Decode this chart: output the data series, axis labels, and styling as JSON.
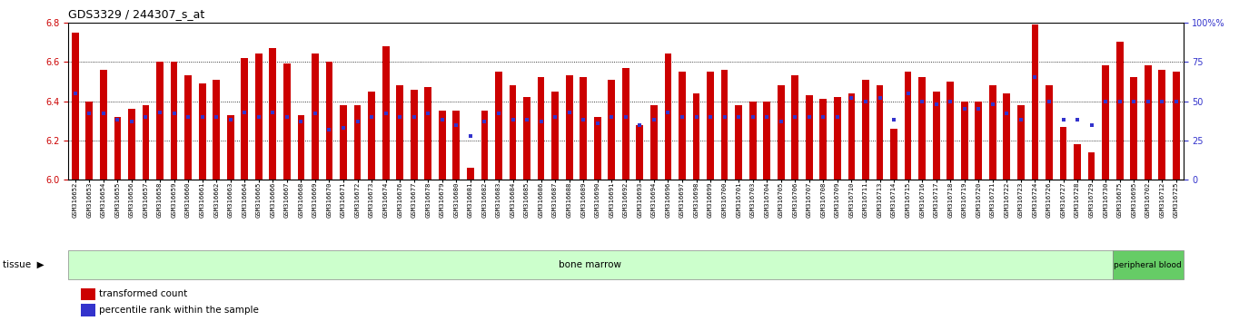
{
  "title": "GDS3329 / 244307_s_at",
  "ylim_left": [
    6.0,
    6.8
  ],
  "ylim_right": [
    0,
    100
  ],
  "yticks_left": [
    6.0,
    6.2,
    6.4,
    6.6,
    6.8
  ],
  "yticks_right": [
    0,
    25,
    50,
    75,
    100
  ],
  "bar_color": "#cc0000",
  "dot_color": "#3333cc",
  "tissue_bone_marrow_color": "#ccffcc",
  "tissue_peripheral_blood_color": "#66cc66",
  "samples": [
    "GSM316652",
    "GSM316653",
    "GSM316654",
    "GSM316655",
    "GSM316656",
    "GSM316657",
    "GSM316658",
    "GSM316659",
    "GSM316660",
    "GSM316661",
    "GSM316662",
    "GSM316663",
    "GSM316664",
    "GSM316665",
    "GSM316666",
    "GSM316667",
    "GSM316668",
    "GSM316669",
    "GSM316670",
    "GSM316671",
    "GSM316672",
    "GSM316673",
    "GSM316674",
    "GSM316676",
    "GSM316677",
    "GSM316678",
    "GSM316679",
    "GSM316680",
    "GSM316681",
    "GSM316682",
    "GSM316683",
    "GSM316684",
    "GSM316685",
    "GSM316686",
    "GSM316687",
    "GSM316688",
    "GSM316689",
    "GSM316690",
    "GSM316691",
    "GSM316692",
    "GSM316693",
    "GSM316694",
    "GSM316696",
    "GSM316697",
    "GSM316698",
    "GSM316699",
    "GSM316700",
    "GSM316701",
    "GSM316703",
    "GSM316704",
    "GSM316705",
    "GSM316706",
    "GSM316707",
    "GSM316708",
    "GSM316709",
    "GSM316710",
    "GSM316711",
    "GSM316713",
    "GSM316714",
    "GSM316715",
    "GSM316716",
    "GSM316717",
    "GSM316718",
    "GSM316719",
    "GSM316720",
    "GSM316721",
    "GSM316722",
    "GSM316723",
    "GSM316724",
    "GSM316726",
    "GSM316727",
    "GSM316728",
    "GSM316729",
    "GSM316730",
    "GSM316675",
    "GSM316695",
    "GSM316702",
    "GSM316712",
    "GSM316725"
  ],
  "bar_values_left": [
    6.75,
    6.4,
    6.56,
    6.32,
    6.36,
    6.38,
    6.6,
    6.6,
    6.53,
    6.49,
    6.51,
    6.33,
    6.62,
    6.64,
    6.67,
    6.59,
    6.33,
    6.64,
    6.6,
    6.38,
    6.38,
    6.45,
    6.68,
    6.48,
    6.46,
    6.47,
    6.35,
    6.35,
    6.06,
    6.35,
    6.55,
    6.48,
    6.42,
    6.52,
    6.45,
    6.53,
    6.52,
    6.32,
    6.51,
    6.57,
    6.28,
    6.38,
    6.64,
    6.55,
    6.44,
    6.55,
    6.56,
    6.38,
    6.4,
    6.4,
    6.48,
    6.53,
    6.43,
    6.41,
    6.42,
    6.44,
    6.51,
    6.48,
    6.26,
    6.55,
    6.52,
    6.45,
    6.5,
    6.4,
    6.4,
    6.48,
    6.44,
    6.38,
    6.79,
    6.48,
    6.27,
    6.18,
    6.14,
    6.58,
    6.7,
    6.52,
    6.58,
    6.56,
    6.55
  ],
  "dot_values_pct": [
    55,
    42,
    42,
    38,
    37,
    40,
    43,
    42,
    40,
    40,
    40,
    38,
    43,
    40,
    43,
    40,
    37,
    42,
    32,
    33,
    37,
    40,
    42,
    40,
    40,
    42,
    38,
    35,
    28,
    37,
    42,
    38,
    38,
    37,
    40,
    43,
    38,
    36,
    40,
    40,
    35,
    38,
    43,
    40,
    40,
    40,
    40,
    40,
    40,
    40,
    37,
    40,
    40,
    40,
    40,
    52,
    50,
    52,
    38,
    55,
    50,
    48,
    50,
    45,
    45,
    48,
    42,
    38,
    65,
    50,
    38,
    38,
    35,
    50,
    50,
    50,
    50,
    50,
    50
  ],
  "bone_marrow_count": 74,
  "n_samples": 79,
  "left_axis_color": "#cc0000",
  "right_axis_color": "#3333cc"
}
